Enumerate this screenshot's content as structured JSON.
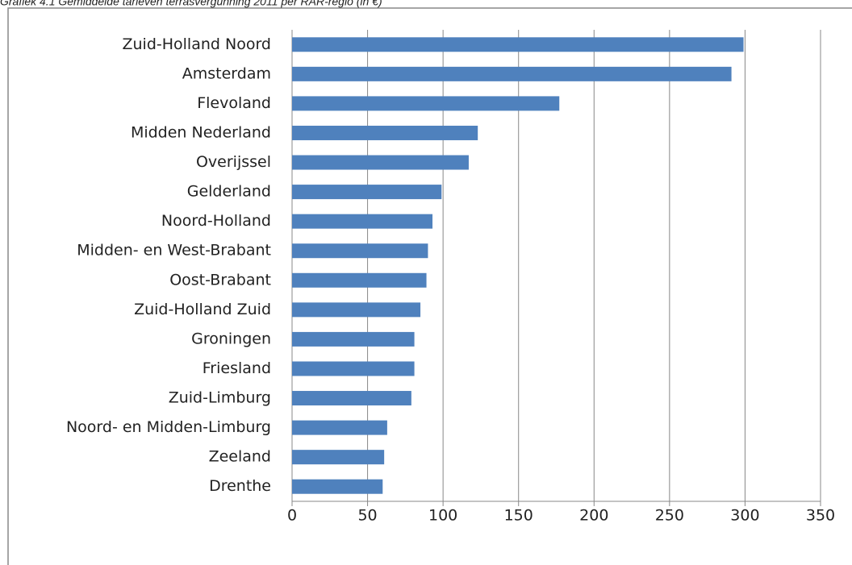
{
  "chart_data": {
    "type": "barh",
    "title": "Grafiek 4.1 Gemiddelde tarieven terrasvergunning 2011 per RAR-regio (in €)",
    "categories": [
      "Zuid-Holland Noord",
      "Amsterdam",
      "Flevoland",
      "Midden Nederland",
      "Overijssel",
      "Gelderland",
      "Noord-Holland",
      "Midden- en West-Brabant",
      "Oost-Brabant",
      "Zuid-Holland Zuid",
      "Groningen",
      "Friesland",
      "Zuid-Limburg",
      "Noord- en Midden-Limburg",
      "Zeeland",
      "Drenthe"
    ],
    "values": [
      299,
      291,
      177,
      123,
      117,
      99,
      93,
      90,
      89,
      85,
      81,
      81,
      79,
      63,
      61,
      60
    ],
    "color": "#4f81bd",
    "xlim": [
      0,
      350
    ],
    "xticks": [
      0,
      50,
      100,
      150,
      200,
      250,
      300,
      350
    ],
    "grid": true
  }
}
